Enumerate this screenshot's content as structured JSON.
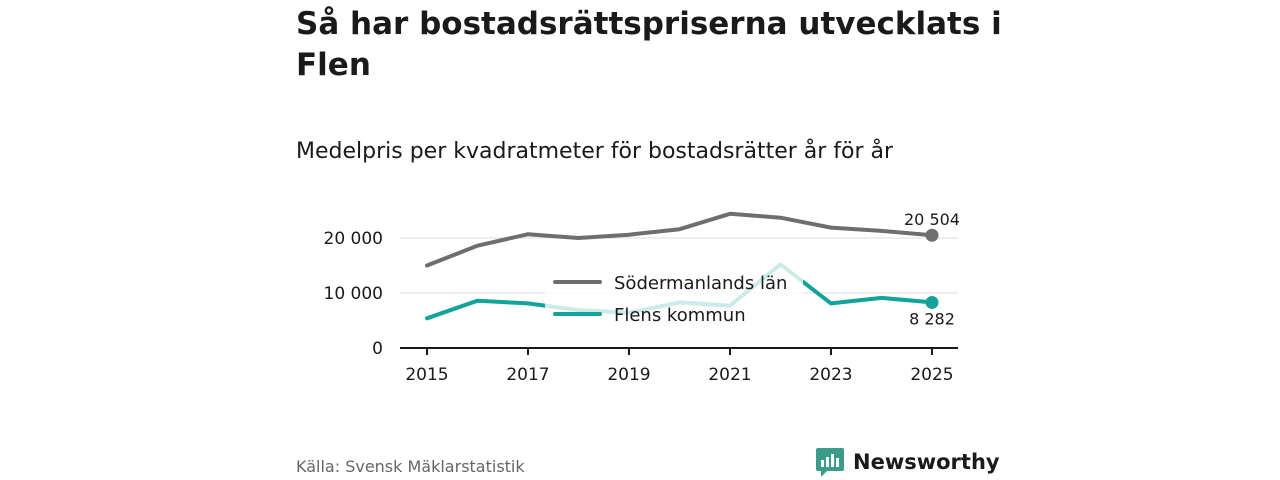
{
  "header": {
    "title": "Så har bostadsrättspriserna utvecklats i Flen",
    "subtitle": "Medelpris per kvadratmeter för bostadsrätter år för år"
  },
  "footer": {
    "source": "Källa: Svensk Mäklarstatistik",
    "brand": "Newsworthy"
  },
  "colors": {
    "lan": "#6e6e6e",
    "kommun": "#12a39a",
    "kommun_faded": "#cfeee9",
    "axis": "#1a1a1a",
    "grid": "#dddddd",
    "brand": "#3c9c8c"
  },
  "chart_data": {
    "type": "line",
    "title": "Medelpris per kvadratmeter för bostadsrätter år för år",
    "xlabel": "",
    "ylabel": "",
    "x": [
      2015,
      2016,
      2017,
      2018,
      2019,
      2020,
      2021,
      2022,
      2023,
      2024,
      2025
    ],
    "x_ticks": [
      "2015",
      "2017",
      "2019",
      "2021",
      "2023",
      "2025"
    ],
    "y_ticks": [
      0,
      10000,
      20000
    ],
    "y_tick_labels": [
      "0",
      "10 000",
      "20 000"
    ],
    "xlim": [
      2015,
      2025
    ],
    "ylim": [
      0,
      25000
    ],
    "grid": true,
    "legend_position": "center",
    "series": [
      {
        "name": "Södermanlands län",
        "values": [
          15000,
          18600,
          20700,
          20000,
          20600,
          21600,
          24400,
          23700,
          21900,
          21300,
          20504
        ],
        "end_label": "20 504"
      },
      {
        "name": "Flens kommun",
        "values": [
          5400,
          8600,
          8100,
          6900,
          6400,
          8300,
          7700,
          15200,
          8100,
          9100,
          8282
        ],
        "end_label": "8 282"
      }
    ]
  }
}
